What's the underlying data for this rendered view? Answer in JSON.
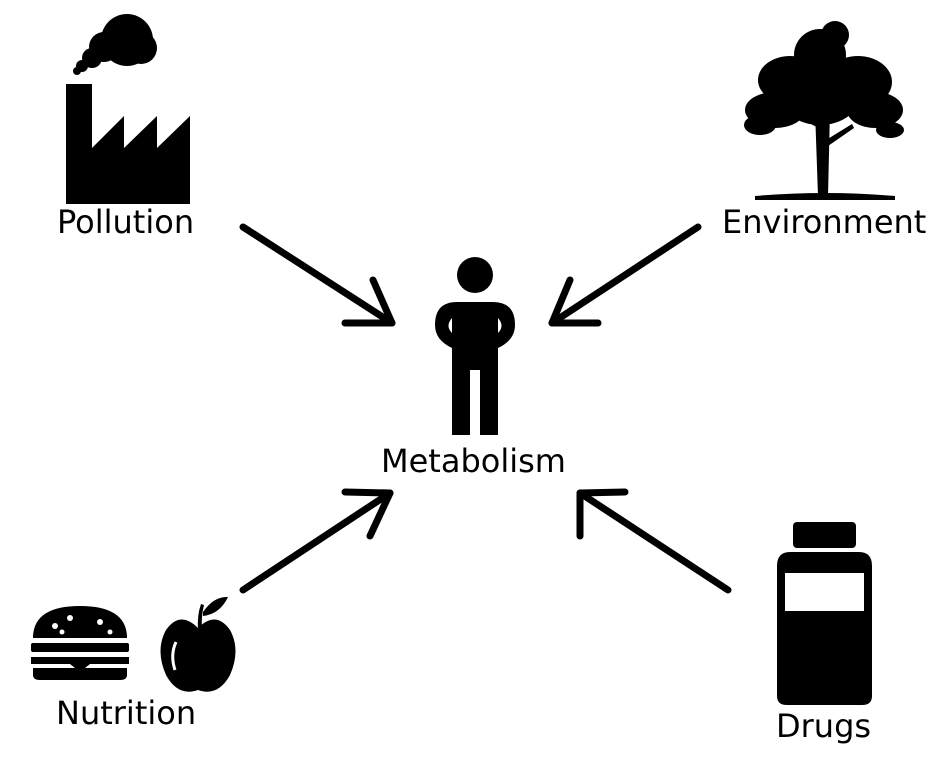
{
  "labels": {
    "pollution": "Pollution",
    "environment": "Environment",
    "metabolism": "Metabolism",
    "nutrition": "Nutrition",
    "drugs": "Drugs"
  },
  "icons": {
    "pollution": "factory-icon",
    "environment": "tree-icon",
    "metabolism": "person-icon",
    "nutrition_food": "burger-icon",
    "nutrition_fruit": "apple-icon",
    "drugs": "pill-bottle-icon"
  },
  "colors": {
    "ink": "#000000",
    "background": "#ffffff"
  }
}
